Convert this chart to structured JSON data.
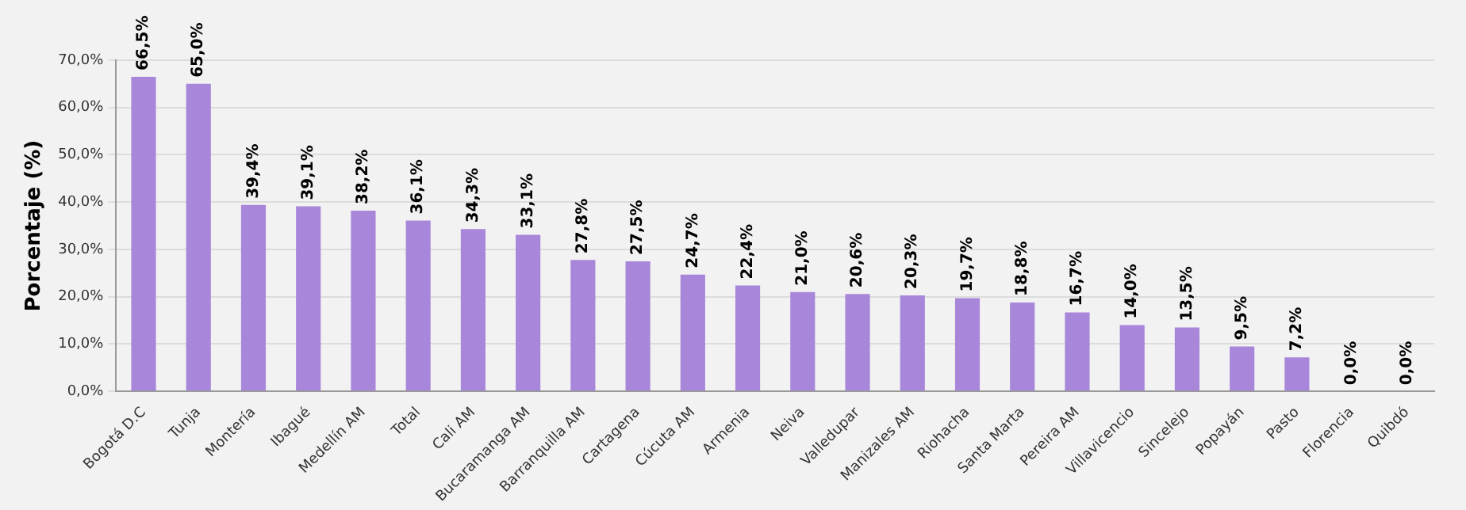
{
  "chart_data": {
    "type": "bar",
    "ylabel": "Porcentaje (%)",
    "categories": [
      "Bogotá D.C",
      "Tunja",
      "Montería",
      "Ibagué",
      "Medellín AM",
      "Total",
      "Cali AM",
      "Bucaramanga AM",
      "Barranquilla AM",
      "Cartagena",
      "Cúcuta AM",
      "Armenia",
      "Neiva",
      "Valledupar",
      "Manizales AM",
      "Riohacha",
      "Santa Marta",
      "Pereira AM",
      "Villavicencio",
      "Sincelejo",
      "Popayán",
      "Pasto",
      "Florencia",
      "Quibdó"
    ],
    "values": [
      66.5,
      65.0,
      39.4,
      39.1,
      38.2,
      36.1,
      34.3,
      33.1,
      27.8,
      27.5,
      24.7,
      22.4,
      21.0,
      20.6,
      20.3,
      19.7,
      18.8,
      16.7,
      14.0,
      13.5,
      9.5,
      7.2,
      0.0,
      0.0
    ],
    "value_labels": [
      "66,5%",
      "65,0%",
      "39,4%",
      "39,1%",
      "38,2%",
      "36,1%",
      "34,3%",
      "33,1%",
      "27,8%",
      "27,5%",
      "24,7%",
      "22,4%",
      "21,0%",
      "20,6%",
      "20,3%",
      "19,7%",
      "18,8%",
      "16,7%",
      "14,0%",
      "13,5%",
      "9,5%",
      "7,2%",
      "0,0%",
      "0,0%"
    ],
    "color": "#a886da",
    "ylim": [
      0,
      70
    ],
    "yticks": [
      {
        "value": 0,
        "label": "0,0%"
      },
      {
        "value": 10,
        "label": "10,0%"
      },
      {
        "value": 20,
        "label": "20,0%"
      },
      {
        "value": 30,
        "label": "30,0%"
      },
      {
        "value": 40,
        "label": "40,0%"
      },
      {
        "value": 50,
        "label": "50,0%"
      },
      {
        "value": 60,
        "label": "60,0%"
      },
      {
        "value": 70,
        "label": "70,0%"
      }
    ],
    "grid": "y",
    "legend": false
  }
}
